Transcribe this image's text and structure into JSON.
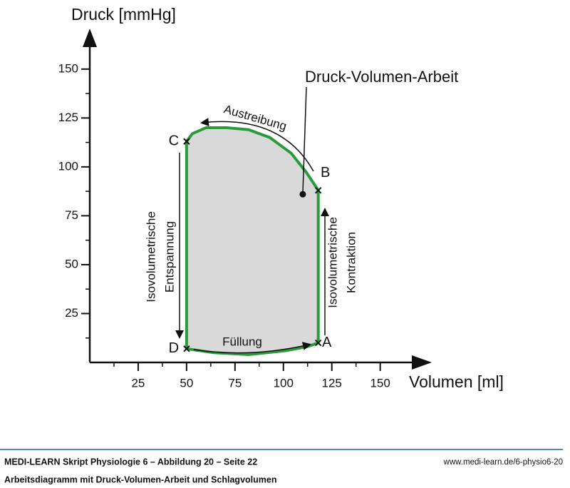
{
  "chart_data": {
    "type": "line",
    "y_label": "Druck [mmHg]",
    "x_label": "Volumen [ml]",
    "xlim": [
      0,
      170
    ],
    "ylim": [
      0,
      170
    ],
    "xticks": [
      25,
      50,
      75,
      100,
      125,
      150
    ],
    "yticks": [
      25,
      50,
      75,
      100,
      125,
      150
    ],
    "minor_xticks": [
      12.5,
      37.5,
      62.5,
      87.5,
      112.5,
      137.5
    ],
    "minor_yticks": [
      12.5,
      37.5,
      62.5,
      87.5,
      112.5,
      137.5
    ],
    "x": [
      50,
      64,
      82,
      101,
      112,
      118,
      118,
      112,
      104,
      93,
      82,
      71,
      60,
      53,
      50,
      50
    ],
    "y": [
      7,
      5,
      4,
      6,
      8,
      10,
      88,
      97,
      107,
      115,
      119,
      120,
      120,
      117,
      113,
      7
    ],
    "color": "#2a9a3a",
    "fill": "#d9d9d9",
    "points": [
      {
        "label": "A",
        "x": 118,
        "y": 10
      },
      {
        "label": "B",
        "x": 118,
        "y": 88
      },
      {
        "label": "C",
        "x": 50,
        "y": 113
      },
      {
        "label": "D",
        "x": 50,
        "y": 7
      }
    ],
    "work_point": {
      "label": "Druck-Volumen-Arbeit",
      "x": 110,
      "y": 86
    },
    "annotations": [
      "Austreibung",
      "Füllung",
      [
        "Isovolumetrische",
        "Entspannung"
      ],
      [
        "Isovolumetrische",
        "Kontraktion"
      ]
    ]
  },
  "footer": {
    "source": "MEDI-LEARN Skript Physiologie 6 – Abbildung 20 – Seite 22",
    "url": "www.medi-learn.de/6-physio6-20",
    "caption": "Arbeitsdiagramm mit Druck-Volumen-Arbeit und Schlagvolumen"
  }
}
